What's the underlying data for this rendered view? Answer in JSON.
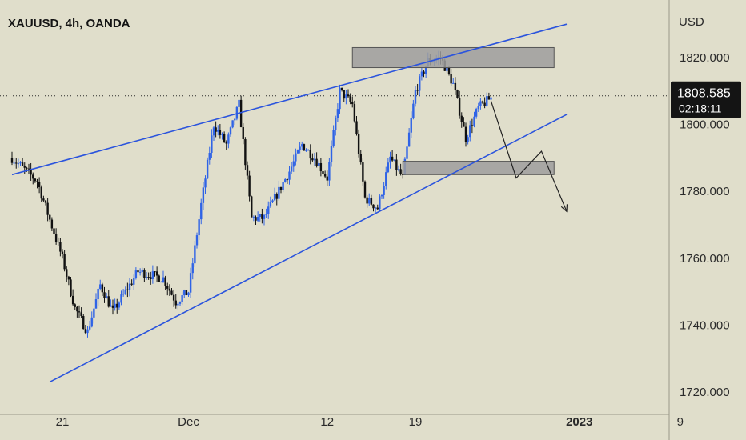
{
  "header": {
    "title": "XAUUSD, 4h, OANDA"
  },
  "price_axis": {
    "currency": "USD",
    "ticks": [
      "1820.000",
      "1800.000",
      "1780.000",
      "1760.000",
      "1740.000",
      "1720.000"
    ],
    "last_price": "1808.585",
    "countdown": "02:18:11"
  },
  "time_axis": {
    "ticks": [
      "21",
      "Dec",
      "12",
      "19",
      "2023",
      "9"
    ],
    "bold": [
      "2023"
    ]
  },
  "colors": {
    "background": "#e0decb",
    "up_candle": "#2f63e6",
    "down_candle": "#111111",
    "trendline": "#2b54dd",
    "zone_fill": "#9d9d9d",
    "projection": "#222222",
    "price_label_bg": "#141414"
  },
  "chart_data": {
    "type": "candlestick",
    "symbol": "XAUUSD",
    "timeframe": "4h",
    "source": "OANDA",
    "ylim": [
      1720,
      1832
    ],
    "y_ticks": [
      1720,
      1740,
      1760,
      1780,
      1800,
      1820
    ],
    "current_price": 1808.585,
    "close_path": [
      [
        "Nov 17",
        1790
      ],
      [
        "Nov 19",
        1783
      ],
      [
        "Nov 21",
        1760
      ],
      [
        "Nov 22",
        1745
      ],
      [
        "Nov 23",
        1738
      ],
      [
        "Nov 24",
        1752
      ],
      [
        "Nov 25",
        1744
      ],
      [
        "Nov 27",
        1756
      ],
      [
        "Nov 29",
        1754
      ],
      [
        "Nov 30",
        1747
      ],
      [
        "Dec 1",
        1750
      ],
      [
        "Dec 2",
        1776
      ],
      [
        "Dec 3",
        1800
      ],
      [
        "Dec 4",
        1794
      ],
      [
        "Dec 5",
        1806
      ],
      [
        "Dec 6",
        1772
      ],
      [
        "Dec 7",
        1772
      ],
      [
        "Dec 9",
        1786
      ],
      [
        "Dec 10",
        1794
      ],
      [
        "Dec 11",
        1790
      ],
      [
        "Dec 12",
        1784
      ],
      [
        "Dec 13",
        1810
      ],
      [
        "Dec 14",
        1806
      ],
      [
        "Dec 15",
        1778
      ],
      [
        "Dec 16",
        1775
      ],
      [
        "Dec 17",
        1790
      ],
      [
        "Dec 18",
        1784
      ],
      [
        "Dec 19",
        1810
      ],
      [
        "Dec 20",
        1819
      ],
      [
        "Dec 21",
        1820
      ],
      [
        "Dec 22",
        1812
      ],
      [
        "Dec 23",
        1796
      ],
      [
        "Dec 24",
        1805
      ],
      [
        "Dec 25",
        1808
      ]
    ],
    "trendlines": [
      {
        "name": "upper",
        "from": [
          "Nov 17",
          1785
        ],
        "to": [
          "Dec 31",
          1830
        ]
      },
      {
        "name": "lower",
        "from": [
          "Nov 20",
          1723
        ],
        "to": [
          "Dec 31",
          1803
        ]
      }
    ],
    "zones": [
      {
        "name": "resistance",
        "from": "Dec 14",
        "to": "Dec 30",
        "low": 1817,
        "high": 1823
      },
      {
        "name": "support",
        "from": "Dec 18",
        "to": "Dec 30",
        "low": 1785,
        "high": 1789
      }
    ],
    "projection": [
      [
        "Dec 25",
        1807
      ],
      [
        "Dec 27",
        1784
      ],
      [
        "Dec 29",
        1792
      ],
      [
        "Dec 31",
        1774
      ]
    ]
  }
}
